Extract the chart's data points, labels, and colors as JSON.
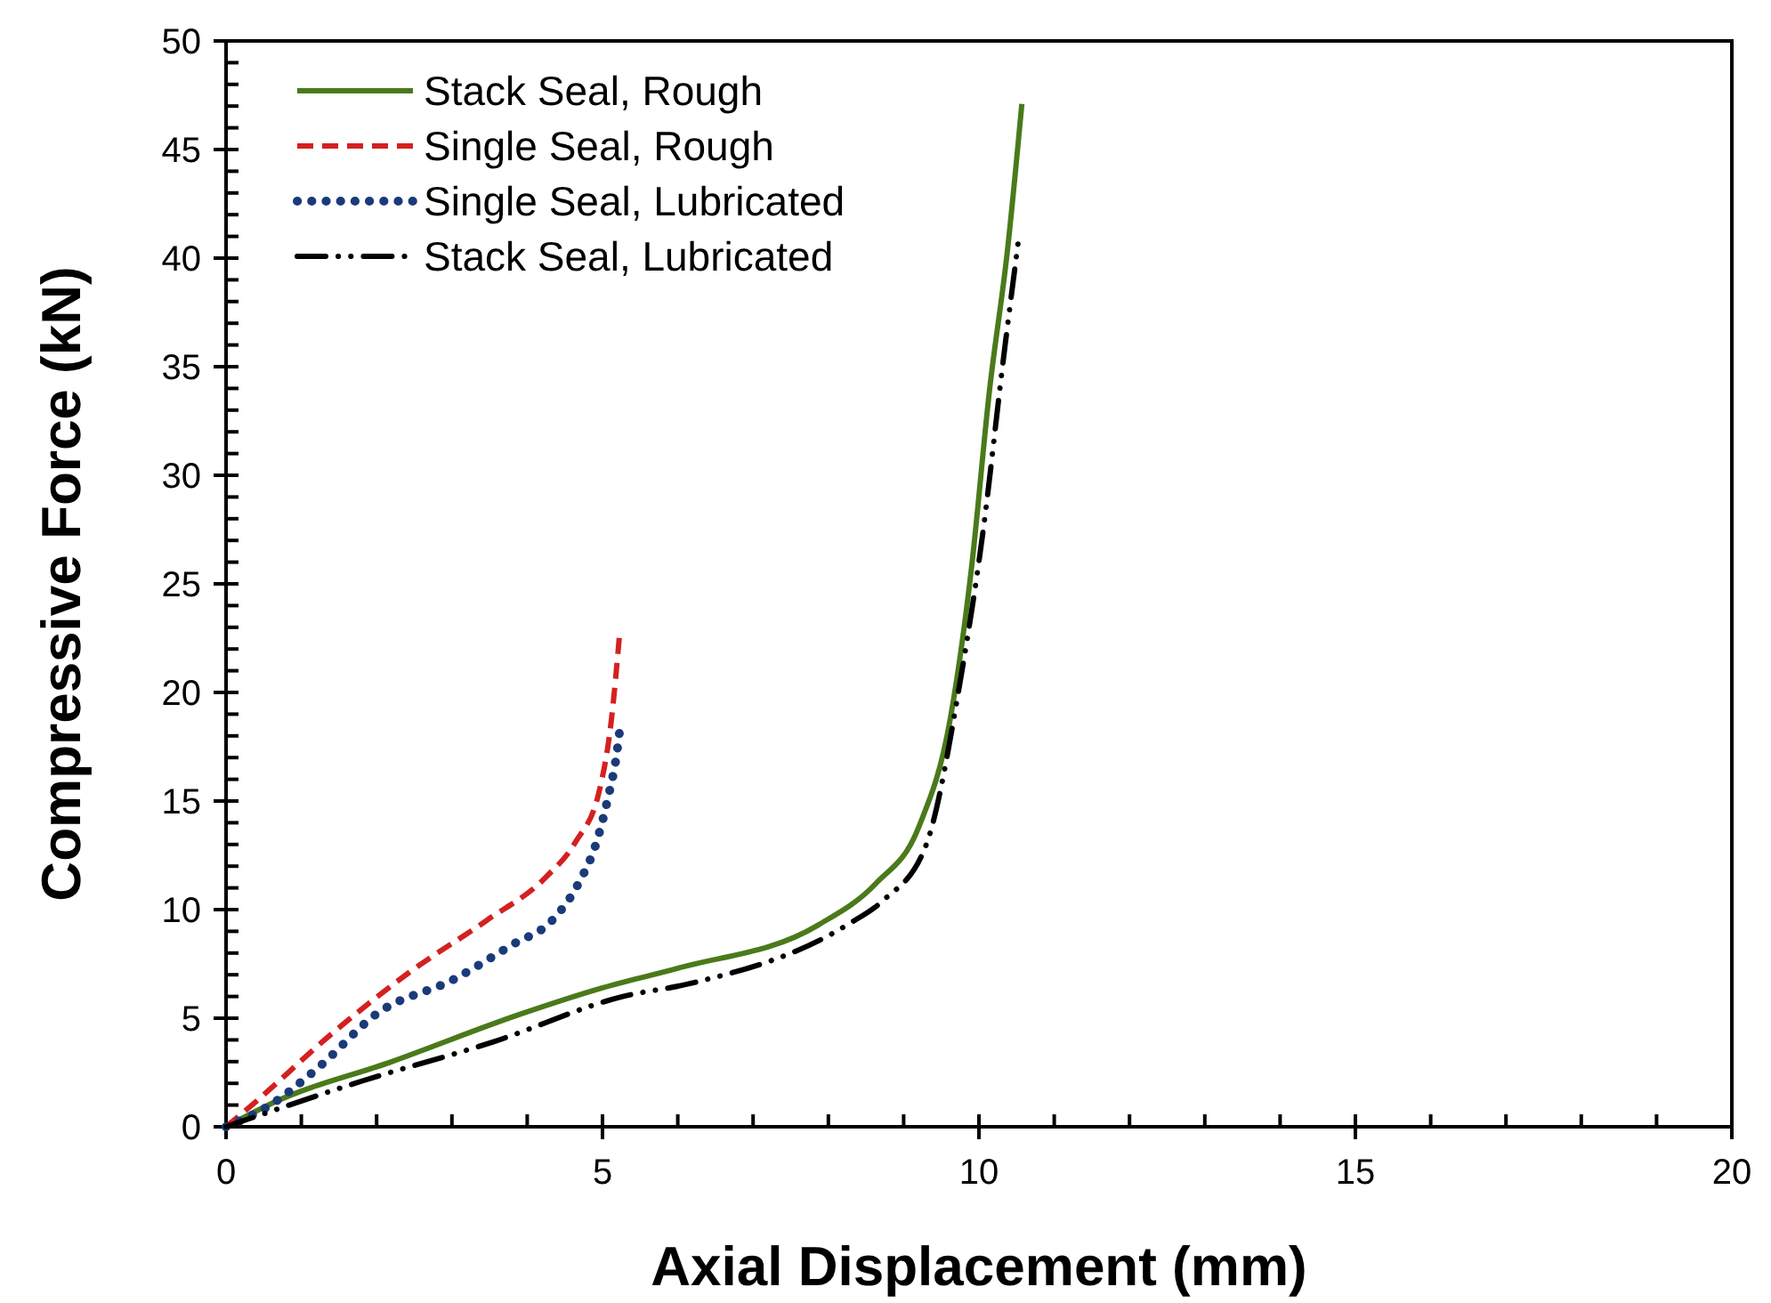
{
  "chart_data": {
    "type": "line",
    "xlabel": "Axial Displacement (mm)",
    "ylabel": "Compressive Force (kN)",
    "xlim": [
      0,
      20
    ],
    "ylim": [
      0,
      50
    ],
    "xticks": [
      0,
      5,
      10,
      15,
      20
    ],
    "yticks": [
      0,
      5,
      10,
      15,
      20,
      25,
      30,
      35,
      40,
      45,
      50
    ],
    "grid": false,
    "legend": "top left",
    "marker": "none",
    "series": [
      {
        "name": "Stack Seal, Rough",
        "color": "#4a7a1a",
        "line_style": "solid",
        "x": [
          0,
          0.62,
          2.2,
          3.92,
          5,
          6,
          7.87,
          8.63,
          9.2,
          9.62,
          9.9,
          10.14,
          10.38,
          10.57
        ],
        "values": [
          0,
          1.1,
          3,
          5.2,
          6.4,
          7.3,
          9.3,
          11.2,
          13.8,
          18.8,
          25.7,
          33.9,
          40.4,
          47.1
        ]
      },
      {
        "name": "Single Seal, Rough",
        "color": "#d42020",
        "line_style": "dashed",
        "x": [
          0,
          0.31,
          1.41,
          2.43,
          3.46,
          4.25,
          4.64,
          4.96,
          5.11,
          5.23
        ],
        "values": [
          0,
          0.9,
          4.3,
          7.1,
          9.5,
          11.5,
          13.1,
          15.5,
          18.5,
          22.8
        ]
      },
      {
        "name": "Single Seal, Lubricated",
        "color": "#1a3a7a",
        "line_style": "dotted",
        "x": [
          0,
          0.54,
          1.25,
          2,
          3.03,
          3.81,
          4.33,
          4.68,
          4.92,
          5.07,
          5.19,
          5.23
        ],
        "values": [
          0,
          0.9,
          2.8,
          5.2,
          6.8,
          8.4,
          9.5,
          11.2,
          13.1,
          15.1,
          17.2,
          18.3
        ]
      },
      {
        "name": "Stack Seal, Lubricated",
        "color": "#000000",
        "line_style": "dashdot",
        "x": [
          0,
          1.8,
          3.54,
          5.27,
          6.17,
          8.25,
          8.72,
          9.29,
          9.76,
          10.05,
          10.33,
          10.52
        ],
        "values": [
          0,
          2.1,
          3.9,
          6,
          6.6,
          9.3,
          10.4,
          12.9,
          20.7,
          27.3,
          35.5,
          40.7
        ]
      }
    ]
  }
}
